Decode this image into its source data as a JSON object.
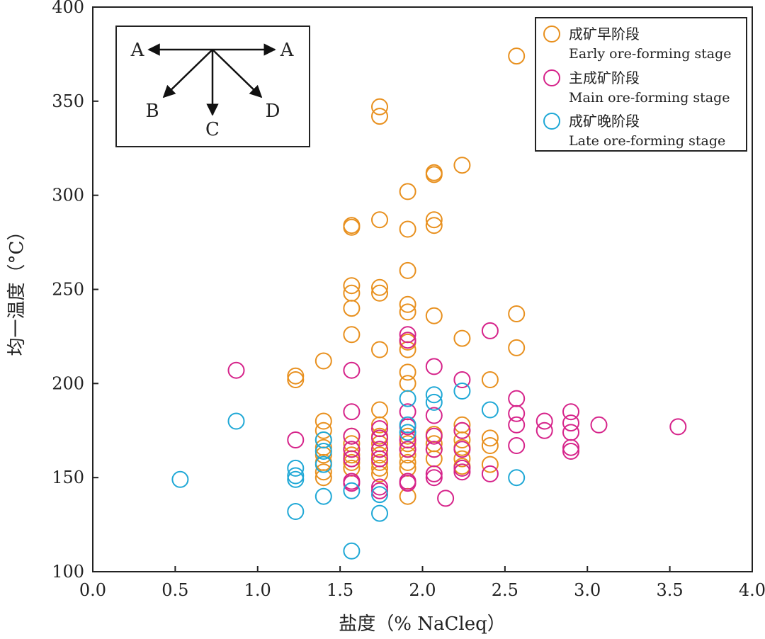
{
  "chart_data": {
    "type": "scatter",
    "xlabel": "盐度（% NaCleq）",
    "ylabel": "均一温度（°C）",
    "xlim": [
      0.0,
      4.0
    ],
    "ylim": [
      100,
      400
    ],
    "xticks": [
      "0.0",
      "0.5",
      "1.0",
      "1.5",
      "2.0",
      "2.5",
      "3.0",
      "3.5",
      "4.0"
    ],
    "yticks": [
      "100",
      "150",
      "200",
      "250",
      "300",
      "350",
      "400"
    ],
    "marker": "hollow-circle",
    "legend_position": "top-right",
    "inset": {
      "position": "top-left",
      "labels": {
        "left": "A",
        "right": "A",
        "b": "B",
        "c": "C",
        "d": "D"
      }
    },
    "series": [
      {
        "label_cn": "成矿早阶段",
        "label_en": "Early ore-forming stage",
        "color": "#e8901e",
        "points": [
          [
            1.23,
            204
          ],
          [
            1.23,
            202
          ],
          [
            1.4,
            212
          ],
          [
            1.4,
            180
          ],
          [
            1.4,
            175
          ],
          [
            1.4,
            170
          ],
          [
            1.4,
            166
          ],
          [
            1.4,
            162
          ],
          [
            1.4,
            158
          ],
          [
            1.4,
            153
          ],
          [
            1.4,
            150
          ],
          [
            1.57,
            252
          ],
          [
            1.57,
            248
          ],
          [
            1.57,
            240
          ],
          [
            1.57,
            226
          ],
          [
            1.57,
            284
          ],
          [
            1.57,
            283
          ],
          [
            1.57,
            172
          ],
          [
            1.57,
            168
          ],
          [
            1.57,
            165
          ],
          [
            1.57,
            162
          ],
          [
            1.57,
            160
          ],
          [
            1.57,
            158
          ],
          [
            1.57,
            155
          ],
          [
            1.74,
            347
          ],
          [
            1.74,
            342
          ],
          [
            1.74,
            287
          ],
          [
            1.74,
            251
          ],
          [
            1.74,
            248
          ],
          [
            1.74,
            218
          ],
          [
            1.74,
            186
          ],
          [
            1.74,
            178
          ],
          [
            1.74,
            172
          ],
          [
            1.74,
            168
          ],
          [
            1.74,
            165
          ],
          [
            1.74,
            162
          ],
          [
            1.74,
            158
          ],
          [
            1.74,
            155
          ],
          [
            1.74,
            152
          ],
          [
            1.91,
            302
          ],
          [
            1.91,
            282
          ],
          [
            1.91,
            260
          ],
          [
            1.91,
            242
          ],
          [
            1.91,
            238
          ],
          [
            1.91,
            222
          ],
          [
            1.91,
            218
          ],
          [
            1.91,
            206
          ],
          [
            1.91,
            200
          ],
          [
            1.91,
            172
          ],
          [
            1.91,
            168
          ],
          [
            1.91,
            165
          ],
          [
            1.91,
            162
          ],
          [
            1.91,
            158
          ],
          [
            1.91,
            155
          ],
          [
            1.91,
            140
          ],
          [
            2.07,
            312
          ],
          [
            2.07,
            311
          ],
          [
            2.07,
            287
          ],
          [
            2.07,
            284
          ],
          [
            2.07,
            236
          ],
          [
            2.07,
            173
          ],
          [
            2.07,
            168
          ],
          [
            2.07,
            165
          ],
          [
            2.07,
            160
          ],
          [
            2.24,
            316
          ],
          [
            2.24,
            224
          ],
          [
            2.24,
            178
          ],
          [
            2.24,
            175
          ],
          [
            2.24,
            170
          ],
          [
            2.24,
            166
          ],
          [
            2.24,
            160
          ],
          [
            2.24,
            156
          ],
          [
            2.41,
            202
          ],
          [
            2.41,
            171
          ],
          [
            2.41,
            167
          ],
          [
            2.41,
            157
          ],
          [
            2.57,
            374
          ],
          [
            2.57,
            237
          ],
          [
            2.57,
            219
          ]
        ]
      },
      {
        "label_cn": "主成矿阶段",
        "label_en": "Main ore-forming stage",
        "color": "#d6238a",
        "points": [
          [
            0.87,
            207
          ],
          [
            1.23,
            170
          ],
          [
            1.57,
            207
          ],
          [
            1.57,
            185
          ],
          [
            1.57,
            172
          ],
          [
            1.57,
            165
          ],
          [
            1.57,
            160
          ],
          [
            1.57,
            148
          ],
          [
            1.57,
            147
          ],
          [
            1.74,
            176
          ],
          [
            1.74,
            171
          ],
          [
            1.74,
            165
          ],
          [
            1.74,
            160
          ],
          [
            1.74,
            145
          ],
          [
            1.74,
            143
          ],
          [
            1.91,
            226
          ],
          [
            1.91,
            223
          ],
          [
            1.91,
            185
          ],
          [
            1.91,
            177
          ],
          [
            1.91,
            170
          ],
          [
            1.91,
            165
          ],
          [
            1.91,
            148
          ],
          [
            1.91,
            147
          ],
          [
            2.07,
            209
          ],
          [
            2.07,
            183
          ],
          [
            2.07,
            172
          ],
          [
            2.07,
            165
          ],
          [
            2.07,
            152
          ],
          [
            2.07,
            150
          ],
          [
            2.14,
            139
          ],
          [
            2.24,
            202
          ],
          [
            2.24,
            175
          ],
          [
            2.24,
            165
          ],
          [
            2.24,
            155
          ],
          [
            2.24,
            153
          ],
          [
            2.41,
            228
          ],
          [
            2.41,
            152
          ],
          [
            2.57,
            192
          ],
          [
            2.57,
            184
          ],
          [
            2.57,
            178
          ],
          [
            2.57,
            167
          ],
          [
            2.74,
            180
          ],
          [
            2.74,
            175
          ],
          [
            2.9,
            185
          ],
          [
            2.9,
            179
          ],
          [
            2.9,
            174
          ],
          [
            2.9,
            166
          ],
          [
            2.9,
            164
          ],
          [
            3.07,
            178
          ],
          [
            3.55,
            177
          ]
        ]
      },
      {
        "label_cn": "成矿晚阶段",
        "label_en": "Late ore-forming stage",
        "color": "#1fa8d6",
        "points": [
          [
            0.53,
            149
          ],
          [
            0.87,
            180
          ],
          [
            1.23,
            155
          ],
          [
            1.23,
            151
          ],
          [
            1.23,
            149
          ],
          [
            1.23,
            132
          ],
          [
            1.4,
            170
          ],
          [
            1.4,
            164
          ],
          [
            1.4,
            157
          ],
          [
            1.4,
            140
          ],
          [
            1.57,
            143
          ],
          [
            1.57,
            111
          ],
          [
            1.74,
            131
          ],
          [
            1.74,
            141
          ],
          [
            1.91,
            192
          ],
          [
            1.91,
            178
          ],
          [
            1.91,
            174
          ],
          [
            2.07,
            194
          ],
          [
            2.07,
            190
          ],
          [
            2.24,
            196
          ],
          [
            2.41,
            186
          ],
          [
            2.57,
            150
          ]
        ]
      }
    ]
  }
}
